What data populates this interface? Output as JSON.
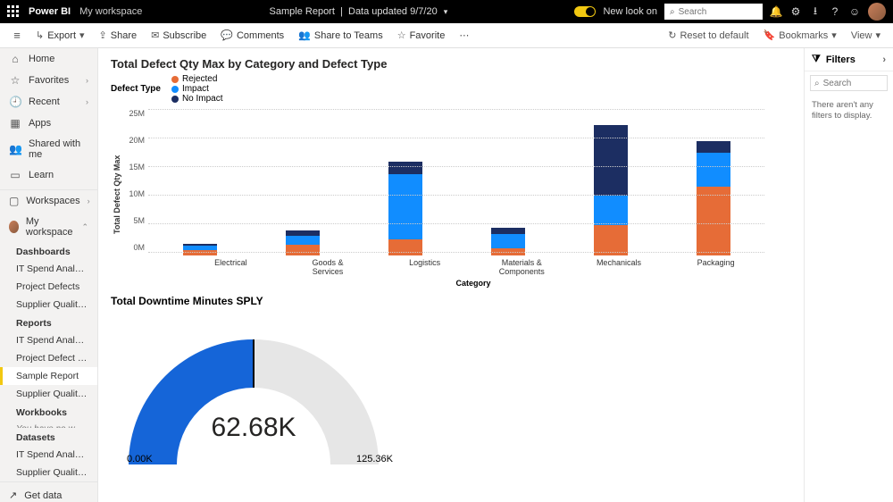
{
  "colors": {
    "brand_yellow": "#f2c811",
    "rejected": "#e66c37",
    "impact": "#118dff",
    "no_impact": "#1c2e62",
    "gauge_fill": "#1565d8",
    "gauge_track": "#e6e6e6"
  },
  "topbar": {
    "brand": "Power BI",
    "workspace": "My workspace",
    "center_title": "Sample Report",
    "center_sub": "Data updated 9/7/20",
    "new_look": "New look on",
    "search_placeholder": "Search"
  },
  "cmd": {
    "export": "Export",
    "share": "Share",
    "subscribe": "Subscribe",
    "comments": "Comments",
    "share_teams": "Share to Teams",
    "favorite": "Favorite",
    "reset": "Reset to default",
    "bookmarks": "Bookmarks",
    "view": "View"
  },
  "nav": {
    "home": "Home",
    "favorites": "Favorites",
    "recent": "Recent",
    "apps": "Apps",
    "shared": "Shared with me",
    "learn": "Learn",
    "workspaces": "Workspaces",
    "my_workspace": "My workspace",
    "sections": {
      "dashboards": "Dashboards",
      "reports": "Reports",
      "workbooks": "Workbooks",
      "datasets": "Datasets"
    },
    "dashboards": [
      "IT Spend Analysis S...",
      "Project Defects",
      "Supplier Quality An..."
    ],
    "reports": [
      "IT Spend Analysis S...",
      "Project Defect Report",
      "Sample Report",
      "Supplier Quality An..."
    ],
    "workbooks_empty": "You have no workbooks",
    "datasets": [
      "IT Spend Analysis S...",
      "Supplier Quality An..."
    ],
    "getdata": "Get data"
  },
  "bar_chart": {
    "title": "Total Defect Qty Max by Category and Defect Type",
    "legend_label": "Defect Type",
    "series": [
      "Rejected",
      "Impact",
      "No Impact"
    ],
    "ylabel": "Total Defect Qty Max",
    "xlabel": "Category",
    "ymax": 25,
    "yticks": [
      "25M",
      "20M",
      "15M",
      "10M",
      "5M",
      "0M"
    ],
    "categories": [
      "Electrical",
      "Goods & Services",
      "Logistics",
      "Materials & Components",
      "Mechanicals",
      "Packaging"
    ],
    "values_rejected": [
      1.0,
      1.8,
      2.8,
      1.2,
      5.3,
      12.0
    ],
    "values_impact": [
      0.8,
      1.6,
      11.4,
      2.6,
      5.2,
      6.0
    ],
    "values_no_impact": [
      0.2,
      1.0,
      2.2,
      1.1,
      12.3,
      2.0
    ]
  },
  "gauge": {
    "title": "Total Downtime Minutes SPLY",
    "value": 62.68,
    "value_label": "62.68K",
    "min_label": "0.00K",
    "max": 125.36,
    "max_label": "125.36K"
  },
  "filters": {
    "header": "Filters",
    "search_placeholder": "Search",
    "empty": "There aren't any filters to display."
  }
}
